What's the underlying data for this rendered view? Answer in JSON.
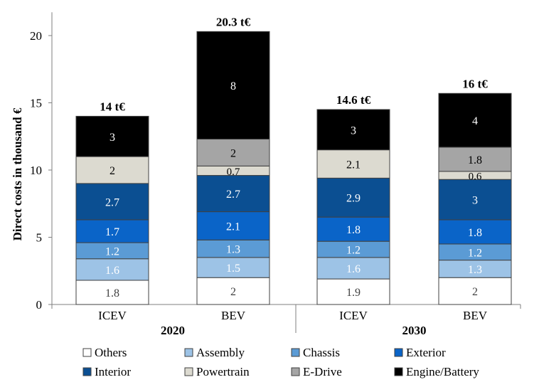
{
  "chart_data": {
    "type": "bar",
    "stacked": true,
    "title": "",
    "ylabel": "Direct costs in thousand €",
    "xlabel": "",
    "ylim": [
      0,
      22
    ],
    "yticks": [
      0,
      5,
      10,
      15,
      20
    ],
    "categories": [
      "ICEV",
      "BEV",
      "ICEV",
      "BEV"
    ],
    "groups": [
      {
        "label": "2020",
        "categories": [
          0,
          1
        ]
      },
      {
        "label": "2030",
        "categories": [
          2,
          3
        ]
      }
    ],
    "totals": [
      "14 t€",
      "20.3 t€",
      "14.6 t€",
      "16 t€"
    ],
    "series": [
      {
        "name": "Others",
        "color": "#ffffff",
        "label_color": "#404040",
        "values": [
          1.8,
          2,
          1.9,
          2
        ]
      },
      {
        "name": "Assembly",
        "color": "#9dc3e6",
        "label_color": "#ffffff",
        "values": [
          1.6,
          1.5,
          1.6,
          1.3
        ]
      },
      {
        "name": "Chassis",
        "color": "#5b9bd5",
        "label_color": "#ffffff",
        "values": [
          1.2,
          1.3,
          1.2,
          1.2
        ]
      },
      {
        "name": "Exterior",
        "color": "#0a64c8",
        "label_color": "#ffffff",
        "values": [
          1.7,
          2.1,
          1.8,
          1.8
        ]
      },
      {
        "name": "Interior",
        "color": "#0b4f92",
        "label_color": "#ffffff",
        "values": [
          2.7,
          2.7,
          2.9,
          3
        ]
      },
      {
        "name": "Powertrain",
        "color": "#dcdad0",
        "label_color": "#000000",
        "values": [
          2,
          0.7,
          2.1,
          0.6
        ]
      },
      {
        "name": "E-Drive",
        "color": "#a5a5a5",
        "label_color": "#000000",
        "values": [
          0,
          2,
          0,
          1.8
        ]
      },
      {
        "name": "Engine/Battery",
        "color": "#000000",
        "label_color": "#ffffff",
        "values": [
          3,
          8,
          3,
          4
        ]
      }
    ]
  }
}
